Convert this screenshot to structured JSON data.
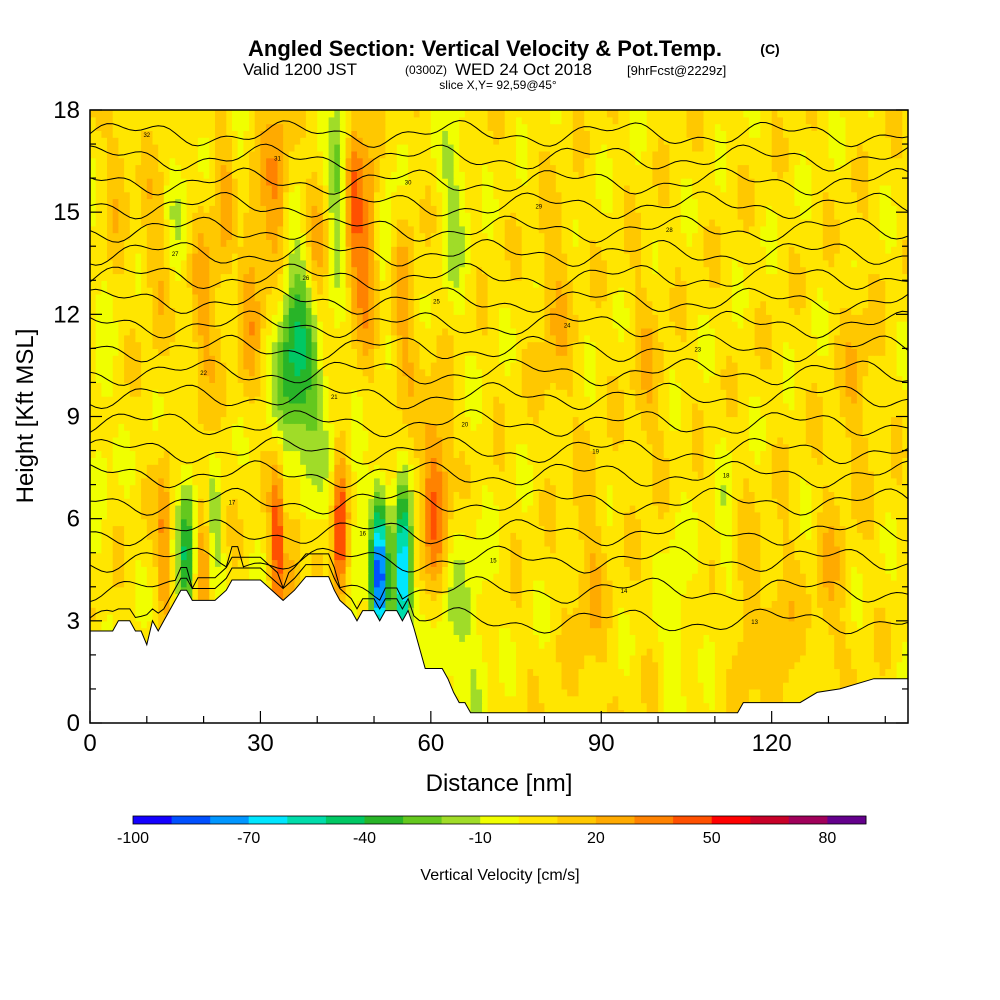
{
  "header": {
    "title": "Angled Section: Vertical Velocity & Pot.Temp.",
    "title_unit": "(C)",
    "valid_prefix": "Valid 1200 JST",
    "valid_utc": "(0300Z)",
    "valid_date": "WED 24 Oct 2018",
    "forecast": "[9hrFcst@2229z]",
    "slice": "slice X,Y= 92,59@45°"
  },
  "chart_data": {
    "type": "heatmap",
    "xlabel": "Distance [nm]",
    "ylabel": "Height [Kft MSL]",
    "xlim": [
      0,
      144
    ],
    "ylim": [
      0,
      18
    ],
    "x_ticks": [
      0,
      30,
      60,
      90,
      120
    ],
    "y_ticks": [
      0,
      3,
      6,
      9,
      12,
      15,
      18
    ],
    "colorbar": {
      "label": "Vertical Velocity [cm/s]",
      "tick_labels": [
        -100,
        -70,
        -40,
        -10,
        20,
        50,
        80
      ],
      "bins": [
        -100,
        -90,
        -80,
        -70,
        -60,
        -50,
        -40,
        -30,
        -20,
        -10,
        0,
        10,
        20,
        30,
        40,
        50,
        60,
        70,
        80,
        90
      ],
      "colors": [
        "#1400ff",
        "#0050ff",
        "#0096ff",
        "#00e6ff",
        "#00dcaa",
        "#00c864",
        "#28b428",
        "#64c81e",
        "#a0dc28",
        "#f0ff00",
        "#ffe600",
        "#ffc800",
        "#ffaa00",
        "#ff8200",
        "#ff5000",
        "#ff0000",
        "#c80028",
        "#a0005a",
        "#64008c"
      ]
    },
    "background_value": 5,
    "features": [
      {
        "x": 5,
        "y": 16.5,
        "w": 2,
        "v": 12
      },
      {
        "x": 12,
        "y": 14,
        "w": 2.5,
        "v": 15
      },
      {
        "x": 15,
        "y": 15,
        "w": 2.5,
        "v": -12
      },
      {
        "x": 20,
        "y": 12,
        "w": 2.5,
        "v": 18
      },
      {
        "x": 24,
        "y": 15,
        "w": 2,
        "v": 20
      },
      {
        "x": 26,
        "y": 14.5,
        "w": 2,
        "v": -18
      },
      {
        "x": 28,
        "y": 13,
        "w": 2.5,
        "v": 25
      },
      {
        "x": 33,
        "y": 15.5,
        "w": 2.5,
        "v": 28
      },
      {
        "x": 35,
        "y": 11,
        "w": 3,
        "v": -25
      },
      {
        "x": 38,
        "y": 10.5,
        "w": 4,
        "v": -35
      },
      {
        "x": 40,
        "y": 13.5,
        "w": 2.5,
        "v": 25
      },
      {
        "x": 44,
        "y": 16,
        "w": 2,
        "v": -40
      },
      {
        "x": 46,
        "y": 15.5,
        "w": 2,
        "v": 35
      },
      {
        "x": 49,
        "y": 14,
        "w": 2.5,
        "v": 30
      },
      {
        "x": 52,
        "y": 14,
        "w": 2,
        "v": -20
      },
      {
        "x": 55,
        "y": 12,
        "w": 2.5,
        "v": 20
      },
      {
        "x": 64,
        "y": 15.5,
        "w": 2.5,
        "v": -20
      },
      {
        "x": 13,
        "y": 5.5,
        "w": 1.2,
        "v": 28
      },
      {
        "x": 17,
        "y": 5,
        "w": 1.5,
        "v": -45
      },
      {
        "x": 20,
        "y": 5,
        "w": 1.2,
        "v": 22
      },
      {
        "x": 22,
        "y": 5.5,
        "w": 1.5,
        "v": -18
      },
      {
        "x": 33,
        "y": 5.5,
        "w": 1.3,
        "v": 45
      },
      {
        "x": 36,
        "y": 5.5,
        "w": 1.5,
        "v": 25
      },
      {
        "x": 44,
        "y": 5.5,
        "w": 1.3,
        "v": 48
      },
      {
        "x": 47,
        "y": 5.5,
        "w": 1.5,
        "v": -15
      },
      {
        "x": 51,
        "y": 4.2,
        "w": 1.5,
        "v": -90
      },
      {
        "x": 55,
        "y": 4.2,
        "w": 1.5,
        "v": -85
      },
      {
        "x": 61,
        "y": 6.5,
        "w": 2.5,
        "v": 38
      },
      {
        "x": 63,
        "y": 3,
        "w": 3,
        "v": -18
      },
      {
        "x": 68,
        "y": 2.5,
        "w": 3,
        "v": -12
      },
      {
        "x": 82,
        "y": 12,
        "w": 3,
        "v": 14
      },
      {
        "x": 88,
        "y": 4,
        "w": 3,
        "v": 14
      },
      {
        "x": 98,
        "y": 10,
        "w": 3,
        "v": 12
      },
      {
        "x": 103,
        "y": 3.5,
        "w": 2,
        "v": -15
      },
      {
        "x": 112,
        "y": 5,
        "w": 2,
        "v": -12
      },
      {
        "x": 115,
        "y": 3,
        "w": 2.5,
        "v": 14
      },
      {
        "x": 122,
        "y": 2.5,
        "w": 2.5,
        "v": 15
      },
      {
        "x": 130,
        "y": 4,
        "w": 2.5,
        "v": 13
      },
      {
        "x": 135,
        "y": 10,
        "w": 3,
        "v": 12
      },
      {
        "x": 2,
        "y": 9,
        "w": 2,
        "v": -12
      }
    ],
    "terrain": [
      [
        0,
        2.7
      ],
      [
        4,
        2.7
      ],
      [
        5,
        3.0
      ],
      [
        7,
        3.0
      ],
      [
        8,
        2.7
      ],
      [
        9,
        2.7
      ],
      [
        10,
        2.3
      ],
      [
        11,
        3.0
      ],
      [
        12,
        2.7
      ],
      [
        13,
        3.0
      ],
      [
        14,
        3.3
      ],
      [
        15,
        3.6
      ],
      [
        16,
        3.9
      ],
      [
        17,
        3.9
      ],
      [
        18,
        3.6
      ],
      [
        20,
        3.6
      ],
      [
        22,
        3.6
      ],
      [
        24,
        3.9
      ],
      [
        25,
        4.2
      ],
      [
        30,
        4.2
      ],
      [
        32,
        3.9
      ],
      [
        34,
        3.6
      ],
      [
        36,
        3.9
      ],
      [
        38,
        4.3
      ],
      [
        42,
        4.3
      ],
      [
        43,
        3.9
      ],
      [
        44,
        3.6
      ],
      [
        46,
        3.3
      ],
      [
        47,
        3.0
      ],
      [
        48,
        3.3
      ],
      [
        50,
        3.3
      ],
      [
        51,
        3.0
      ],
      [
        52,
        3.3
      ],
      [
        54,
        3.3
      ],
      [
        55,
        3.0
      ],
      [
        56,
        3.3
      ],
      [
        57,
        2.8
      ],
      [
        58,
        2.2
      ],
      [
        59,
        1.6
      ],
      [
        62,
        1.6
      ],
      [
        63,
        1.3
      ],
      [
        64,
        0.9
      ],
      [
        65,
        0.6
      ],
      [
        66,
        0.6
      ],
      [
        67,
        0.3
      ],
      [
        68,
        0.3
      ],
      [
        114,
        0.3
      ],
      [
        115,
        0.6
      ],
      [
        125,
        0.6
      ],
      [
        128,
        0.9
      ],
      [
        132,
        1.0
      ],
      [
        138,
        1.3
      ],
      [
        144,
        1.3
      ]
    ],
    "isentropes": [
      {
        "label": "32",
        "y": 17.3
      },
      {
        "label": "31",
        "y": 16.6
      },
      {
        "label": "30",
        "y": 15.9
      },
      {
        "label": "29",
        "y": 15.2
      },
      {
        "label": "28",
        "y": 14.5
      },
      {
        "label": "27",
        "y": 13.8
      },
      {
        "label": "26",
        "y": 13.1
      },
      {
        "label": "25",
        "y": 12.4
      },
      {
        "label": "24",
        "y": 11.7
      },
      {
        "label": "23",
        "y": 11.0
      },
      {
        "label": "22",
        "y": 10.3
      },
      {
        "label": "21",
        "y": 9.6
      },
      {
        "label": "20",
        "y": 8.8
      },
      {
        "label": "19",
        "y": 8.0
      },
      {
        "label": "18",
        "y": 7.3
      },
      {
        "label": "17",
        "y": 6.5
      },
      {
        "label": "16",
        "y": 5.6
      },
      {
        "label": "15",
        "y": 4.8
      },
      {
        "label": "14",
        "y": 3.9
      },
      {
        "label": "13",
        "y": 3.0
      }
    ]
  }
}
